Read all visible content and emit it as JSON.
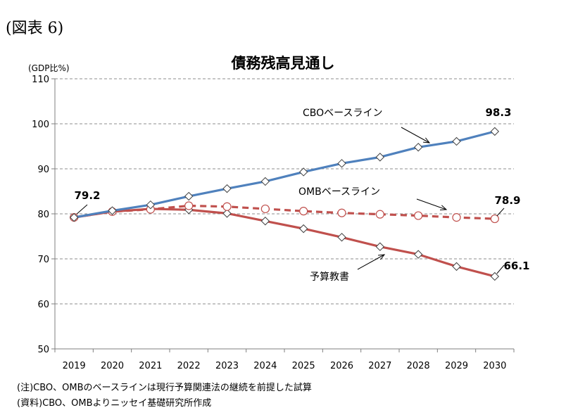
{
  "figure_label": "(図表 6)",
  "notes": {
    "note": "(注)CBO、OMBのベースラインは現行予算関連法の継続を前提した試算",
    "source": "(資料)CBO、OMBよりニッセイ基礎研究所作成"
  },
  "chart_data": {
    "type": "line",
    "title": "債務残高見通し",
    "ylabel": "(GDP比%)",
    "xlabel": "",
    "categories": [
      "2019",
      "2020",
      "2021",
      "2022",
      "2023",
      "2024",
      "2025",
      "2026",
      "2027",
      "2028",
      "2029",
      "2030"
    ],
    "ylim": [
      50,
      110
    ],
    "yticks": [
      50,
      60,
      70,
      80,
      90,
      100,
      110
    ],
    "grid": true,
    "series": [
      {
        "name": "CBOベースライン",
        "color": "#4f81bd",
        "dashed": false,
        "marker": "diamond",
        "values": [
          79.2,
          80.7,
          82.0,
          83.9,
          85.6,
          87.2,
          89.3,
          91.2,
          92.6,
          94.8,
          96.1,
          98.3
        ]
      },
      {
        "name": "OMBベースライン",
        "color": "#c0504d",
        "dashed": true,
        "marker": "circle",
        "values": [
          79.2,
          80.5,
          81.0,
          81.8,
          81.6,
          81.1,
          80.6,
          80.2,
          79.9,
          79.6,
          79.2,
          78.9
        ]
      },
      {
        "name": "予算教書",
        "color": "#c0504d",
        "dashed": false,
        "marker": "diamond",
        "values": [
          79.2,
          80.5,
          81.1,
          80.9,
          80.1,
          78.4,
          76.7,
          74.8,
          72.7,
          71.0,
          68.3,
          66.1
        ]
      }
    ],
    "data_labels": [
      {
        "text": "79.2"
      },
      {
        "text": "98.3"
      },
      {
        "text": "78.9"
      },
      {
        "text": "66.1"
      }
    ]
  }
}
